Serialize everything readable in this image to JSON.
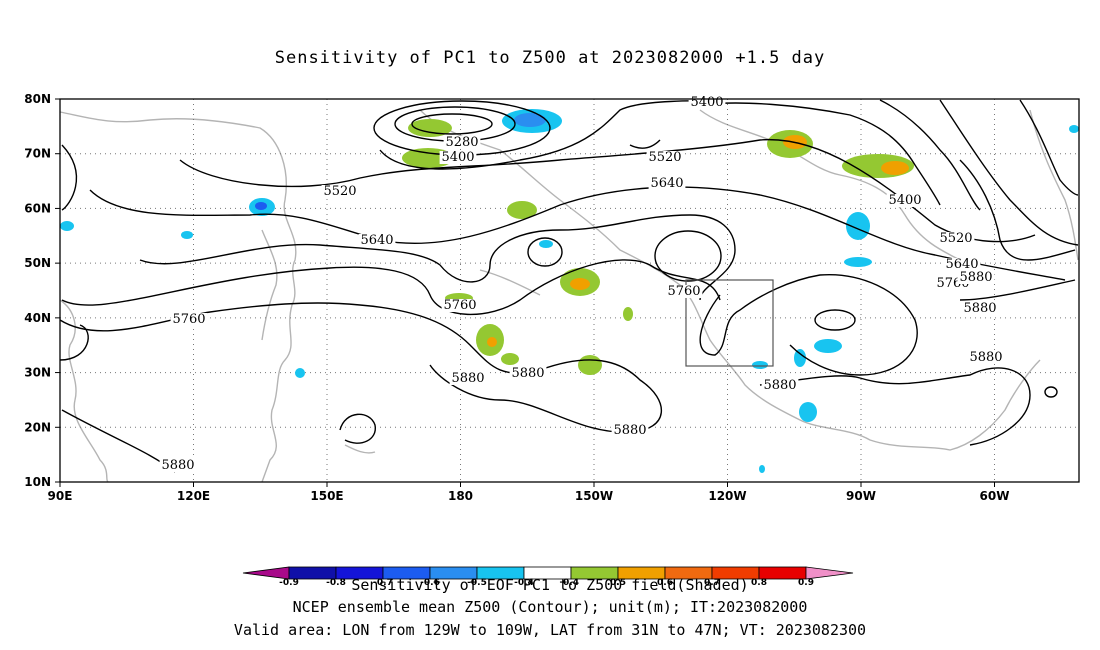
{
  "title": "Sensitivity of PC1 to Z500 at 2023082000 +1.5 day",
  "chart_data": {
    "type": "heatmap",
    "title": "Sensitivity of PC1 to Z500 at 2023082000 +1.5 day",
    "x_ticks": [
      "90E",
      "120E",
      "150E",
      "180",
      "150W",
      "120W",
      "90W",
      "60W"
    ],
    "y_ticks": [
      "10N",
      "20N",
      "30N",
      "40N",
      "50N",
      "60N",
      "70N",
      "80N"
    ],
    "lon_range": [
      "90E",
      "47W"
    ],
    "lat_range": [
      10,
      80
    ],
    "grid": "dotted",
    "colorbar": {
      "labels": [
        "-0.9",
        "-0.8",
        "-0.7",
        "-0.6",
        "-0.5",
        "-0.4",
        "0.4",
        "0.5",
        "0.6",
        "0.7",
        "0.8",
        "0.9"
      ],
      "colors": [
        "#a8098a",
        "#1010a8",
        "#1414d8",
        "#1c5cf0",
        "#2a8ef0",
        "#18c4f0",
        "#ffffff",
        "#94c832",
        "#f0a000",
        "#f06a10",
        "#f03c00",
        "#e80000",
        "#f090c8"
      ]
    },
    "contour_labels": [
      "5280",
      "5400",
      "5400",
      "5400",
      "5520",
      "5520",
      "5520",
      "5640",
      "5640",
      "5640",
      "5760",
      "5760",
      "5760",
      "5760",
      "5880",
      "5880",
      "5880",
      "5880",
      "5880",
      "5880",
      "5880",
      "5880"
    ],
    "valid_area": {
      "lon": [
        "129W",
        "109W"
      ],
      "lat": [
        "31N",
        "47N"
      ]
    }
  },
  "captions": {
    "line1": "Sensitivity of EOF PC1 to Z500 field(Shaded)",
    "line2": "NCEP ensemble mean Z500 (Contour); unit(m); IT:2023082000",
    "line3": "Valid area: LON from 129W to 109W, LAT from 31N to 47N; VT: 2023082300"
  },
  "colors": {
    "contour": "#000000",
    "coast": "#b4b4b4",
    "positive_shade": "#94c832",
    "negative_shade": "#18c4f0"
  }
}
